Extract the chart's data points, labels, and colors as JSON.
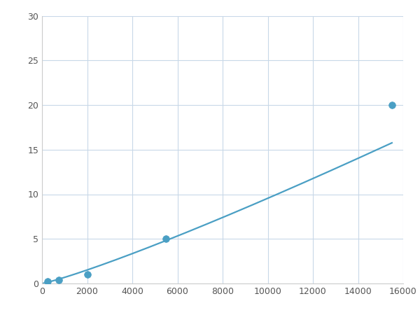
{
  "x": [
    250,
    750,
    2000,
    5500,
    15500
  ],
  "y": [
    0.2,
    0.4,
    1.0,
    5.0,
    20.0
  ],
  "line_color": "#4a9fc4",
  "marker_color": "#4a9fc4",
  "marker_size": 7,
  "line_width": 1.6,
  "xlim": [
    0,
    16000
  ],
  "ylim": [
    0,
    30
  ],
  "xticks": [
    0,
    2000,
    4000,
    6000,
    8000,
    10000,
    12000,
    14000,
    16000
  ],
  "yticks": [
    0,
    5,
    10,
    15,
    20,
    25,
    30
  ],
  "grid_color": "#c8d8e8",
  "grid_alpha": 1.0,
  "bg_color": "#ffffff",
  "figsize": [
    6.0,
    4.5
  ],
  "dpi": 100
}
